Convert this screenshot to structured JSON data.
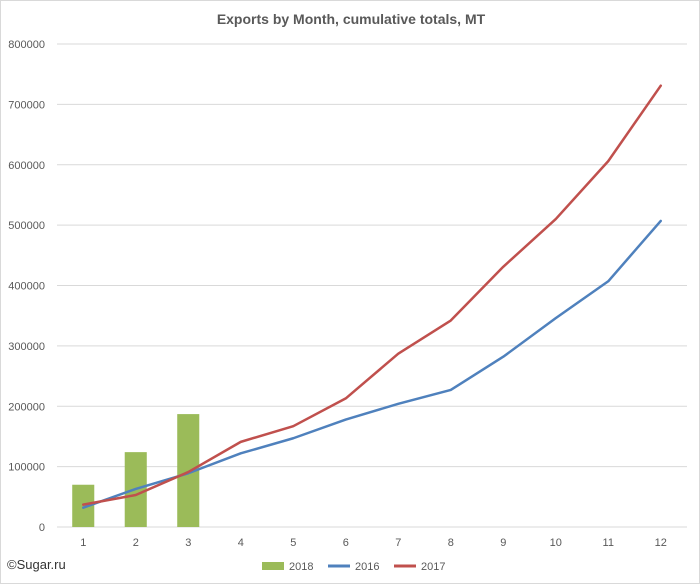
{
  "chart_data": {
    "type": "bar+line",
    "title": "Exports by Month, cumulative totals, MT",
    "xlabel": "",
    "ylabel": "",
    "categories": [
      "1",
      "2",
      "3",
      "4",
      "5",
      "6",
      "7",
      "8",
      "9",
      "10",
      "11",
      "12"
    ],
    "ylim": [
      0,
      800000
    ],
    "yticks": [
      "0",
      "100000",
      "200000",
      "300000",
      "400000",
      "500000",
      "600000",
      "700000",
      "800000"
    ],
    "grid": true,
    "legend_placement": "bottom",
    "series": [
      {
        "name": "2018",
        "kind": "bar",
        "color": "#9bbb59",
        "values": [
          70000,
          124000,
          187000,
          null,
          null,
          null,
          null,
          null,
          null,
          null,
          null,
          null
        ]
      },
      {
        "name": "2016",
        "kind": "line",
        "color": "#4f81bd",
        "values": [
          32000,
          63000,
          89000,
          122000,
          147000,
          178000,
          204000,
          227000,
          282000,
          346000,
          407000,
          507000
        ]
      },
      {
        "name": "2017",
        "kind": "line",
        "color": "#c0504d",
        "values": [
          37000,
          53000,
          91000,
          141000,
          167000,
          213000,
          287000,
          342000,
          431000,
          510000,
          606000,
          731000
        ]
      }
    ]
  },
  "watermark": "©Sugar.ru"
}
